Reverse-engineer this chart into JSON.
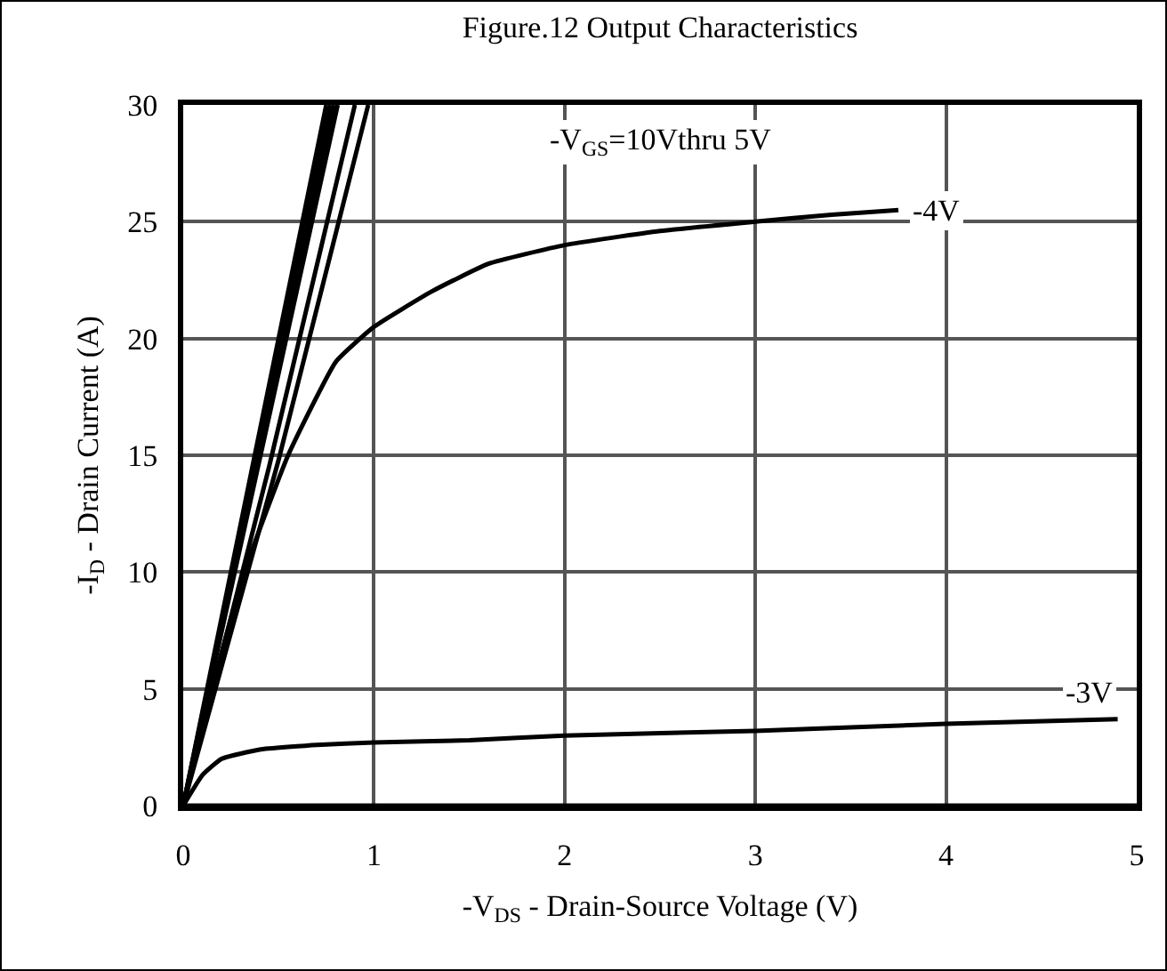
{
  "chart_data": {
    "type": "line",
    "title": "Figure.12 Output Characteristics",
    "xlabel": "-V$_{DS}$ - Drain-Source Voltage (V)",
    "ylabel": "-I$_{D}$ - Drain Current (A)",
    "xlim": [
      0,
      5
    ],
    "ylim": [
      0,
      30
    ],
    "xticks": [
      0,
      1,
      2,
      3,
      4,
      5
    ],
    "yticks": [
      0,
      5,
      10,
      15,
      20,
      25,
      30
    ],
    "grid": true,
    "legend": false,
    "marker": "none",
    "line_style": "solid",
    "annotations": [
      "-V$_{GS}$=10Vthru 5V"
    ],
    "series": [
      {
        "color": "#000000",
        "x": [
          0,
          0.4,
          0.75
        ],
        "values": [
          0,
          16,
          30
        ]
      },
      {
        "color": "#000000",
        "x": [
          0,
          0.4,
          0.77
        ],
        "values": [
          0,
          15.6,
          30
        ]
      },
      {
        "color": "#000000",
        "x": [
          0,
          0.4,
          0.79
        ],
        "values": [
          0,
          15.2,
          30
        ]
      },
      {
        "color": "#000000",
        "x": [
          0,
          0.4,
          0.81
        ],
        "values": [
          0,
          14.8,
          30
        ]
      },
      {
        "color": "#000000",
        "x": [
          0,
          0.45,
          0.9
        ],
        "values": [
          0,
          14.5,
          30
        ]
      },
      {
        "color": "#000000",
        "x": [
          0,
          0.5,
          0.97
        ],
        "values": [
          0,
          14.8,
          30
        ]
      },
      {
        "name": "-4V",
        "color": "#000000",
        "x": [
          0,
          0.15,
          0.32,
          0.55,
          0.8,
          1,
          1.3,
          1.6,
          2,
          2.5,
          3,
          3.4,
          3.75
        ],
        "values": [
          0,
          5,
          10,
          15,
          19,
          20.5,
          22,
          23.2,
          24,
          24.6,
          25,
          25.3,
          25.5
        ]
      },
      {
        "name": "-3V",
        "color": "#000000",
        "x": [
          0,
          0.1,
          0.2,
          0.4,
          0.7,
          1,
          1.5,
          2,
          3,
          4,
          4.9
        ],
        "values": [
          0,
          1.3,
          2,
          2.4,
          2.6,
          2.7,
          2.8,
          3,
          3.2,
          3.5,
          3.7
        ]
      },
      {
        "color": "#000000",
        "x": [
          0,
          1,
          2,
          3,
          4,
          5
        ],
        "values": [
          0,
          0,
          0,
          0,
          0,
          0
        ]
      }
    ]
  }
}
